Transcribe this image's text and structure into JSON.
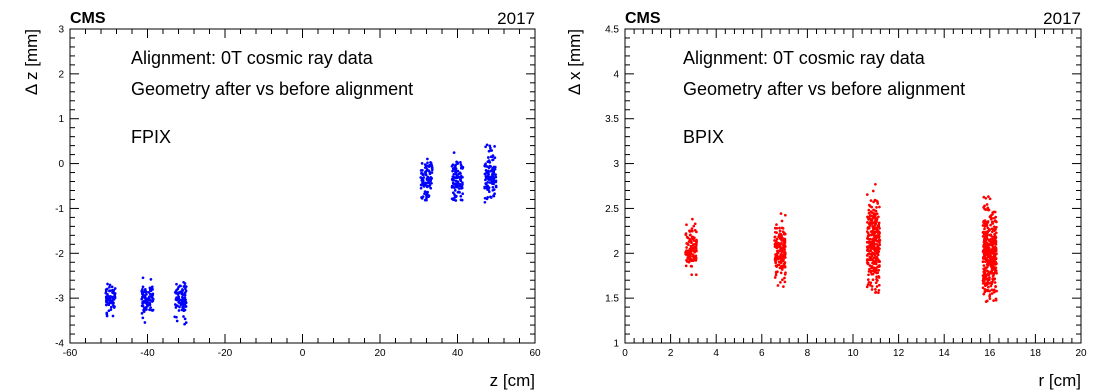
{
  "chart_data": [
    {
      "type": "scatter",
      "experiment_label": "CMS",
      "year_label": "2017",
      "xlabel": "z [cm]",
      "ylabel": "Δ z [mm]",
      "xlim": [
        -60,
        60
      ],
      "ylim": [
        -4,
        3
      ],
      "xticks": [
        -60,
        -40,
        -20,
        0,
        20,
        40,
        60
      ],
      "yticks": [
        -4,
        -3,
        -2,
        -1,
        0,
        1,
        2,
        3
      ],
      "annotations": [
        "Alignment: 0T cosmic ray data",
        "Geometry after vs before alignment",
        "FPIX"
      ],
      "marker_color": "#0000ff",
      "grid": false,
      "clusters": [
        {
          "x_center": -49.5,
          "x_spread": 1.3,
          "y_center": -3.0,
          "y_spread": 0.16,
          "y_min": -3.4,
          "y_max": -2.25,
          "count": 70
        },
        {
          "x_center": -40.0,
          "x_spread": 1.5,
          "y_center": -3.05,
          "y_spread": 0.18,
          "y_min": -3.55,
          "y_max": -2.5,
          "count": 90
        },
        {
          "x_center": -31.5,
          "x_spread": 1.5,
          "y_center": -3.05,
          "y_spread": 0.18,
          "y_min": -3.6,
          "y_max": -2.45,
          "count": 85
        },
        {
          "x_center": 32.0,
          "x_spread": 1.5,
          "y_center": -0.35,
          "y_spread": 0.25,
          "y_min": -0.95,
          "y_max": 0.25,
          "count": 90
        },
        {
          "x_center": 40.0,
          "x_spread": 1.5,
          "y_center": -0.35,
          "y_spread": 0.25,
          "y_min": -0.85,
          "y_max": 0.45,
          "count": 95
        },
        {
          "x_center": 48.5,
          "x_spread": 1.5,
          "y_center": -0.3,
          "y_spread": 0.28,
          "y_min": -0.95,
          "y_max": 0.45,
          "count": 110
        }
      ]
    },
    {
      "type": "scatter",
      "experiment_label": "CMS",
      "year_label": "2017",
      "xlabel": "r [cm]",
      "ylabel": "Δ x [mm]",
      "xlim": [
        0,
        20
      ],
      "ylim": [
        1,
        4.5
      ],
      "xticks": [
        0,
        2,
        4,
        6,
        8,
        10,
        12,
        14,
        16,
        18,
        20
      ],
      "yticks": [
        1,
        1.5,
        2,
        2.5,
        3,
        3.5,
        4,
        4.5
      ],
      "annotations": [
        "Alignment: 0T cosmic ray data",
        "Geometry after vs before alignment",
        "BPIX"
      ],
      "marker_color": "#ff0000",
      "grid": false,
      "clusters": [
        {
          "x_center": 2.9,
          "x_spread": 0.25,
          "y_center": 2.05,
          "y_spread": 0.13,
          "y_min": 1.75,
          "y_max": 2.4,
          "count": 110
        },
        {
          "x_center": 6.8,
          "x_spread": 0.25,
          "y_center": 2.02,
          "y_spread": 0.15,
          "y_min": 1.6,
          "y_max": 2.55,
          "count": 180
        },
        {
          "x_center": 10.9,
          "x_spread": 0.28,
          "y_center": 2.1,
          "y_spread": 0.25,
          "y_min": 1.55,
          "y_max": 2.8,
          "count": 300
        },
        {
          "x_center": 16.0,
          "x_spread": 0.3,
          "y_center": 2.0,
          "y_spread": 0.25,
          "y_min": 1.4,
          "y_max": 2.8,
          "count": 380
        }
      ]
    }
  ]
}
